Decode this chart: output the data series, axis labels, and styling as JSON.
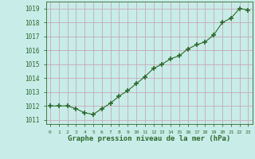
{
  "x": [
    0,
    1,
    2,
    3,
    4,
    5,
    6,
    7,
    8,
    9,
    10,
    11,
    12,
    13,
    14,
    15,
    16,
    17,
    18,
    19,
    20,
    21,
    22,
    23
  ],
  "y": [
    1012.0,
    1012.0,
    1012.0,
    1011.8,
    1011.5,
    1011.4,
    1011.8,
    1012.2,
    1012.7,
    1013.1,
    1013.6,
    1014.1,
    1014.7,
    1015.0,
    1015.4,
    1015.6,
    1016.1,
    1016.4,
    1016.6,
    1017.1,
    1018.0,
    1018.3,
    1019.0,
    1018.9
  ],
  "line_color": "#2d6a2d",
  "marker": "+",
  "marker_size": 4,
  "bg_color": "#c8ece8",
  "grid_color": "#c8a8b8",
  "ylabel_ticks": [
    1011,
    1012,
    1013,
    1014,
    1015,
    1016,
    1017,
    1018,
    1019
  ],
  "xlabel_ticks": [
    0,
    1,
    2,
    3,
    4,
    5,
    6,
    7,
    8,
    9,
    10,
    11,
    12,
    13,
    14,
    15,
    16,
    17,
    18,
    19,
    20,
    21,
    22,
    23
  ],
  "xlabel": "Graphe pression niveau de la mer (hPa)",
  "ylim": [
    1010.7,
    1019.5
  ],
  "xlim": [
    -0.5,
    23.5
  ],
  "axis_color": "#2d6a2d",
  "tick_color": "#2d6a2d",
  "xlabel_fontsize": 6.5,
  "ytick_fontsize": 5.5,
  "xtick_fontsize": 4.5
}
